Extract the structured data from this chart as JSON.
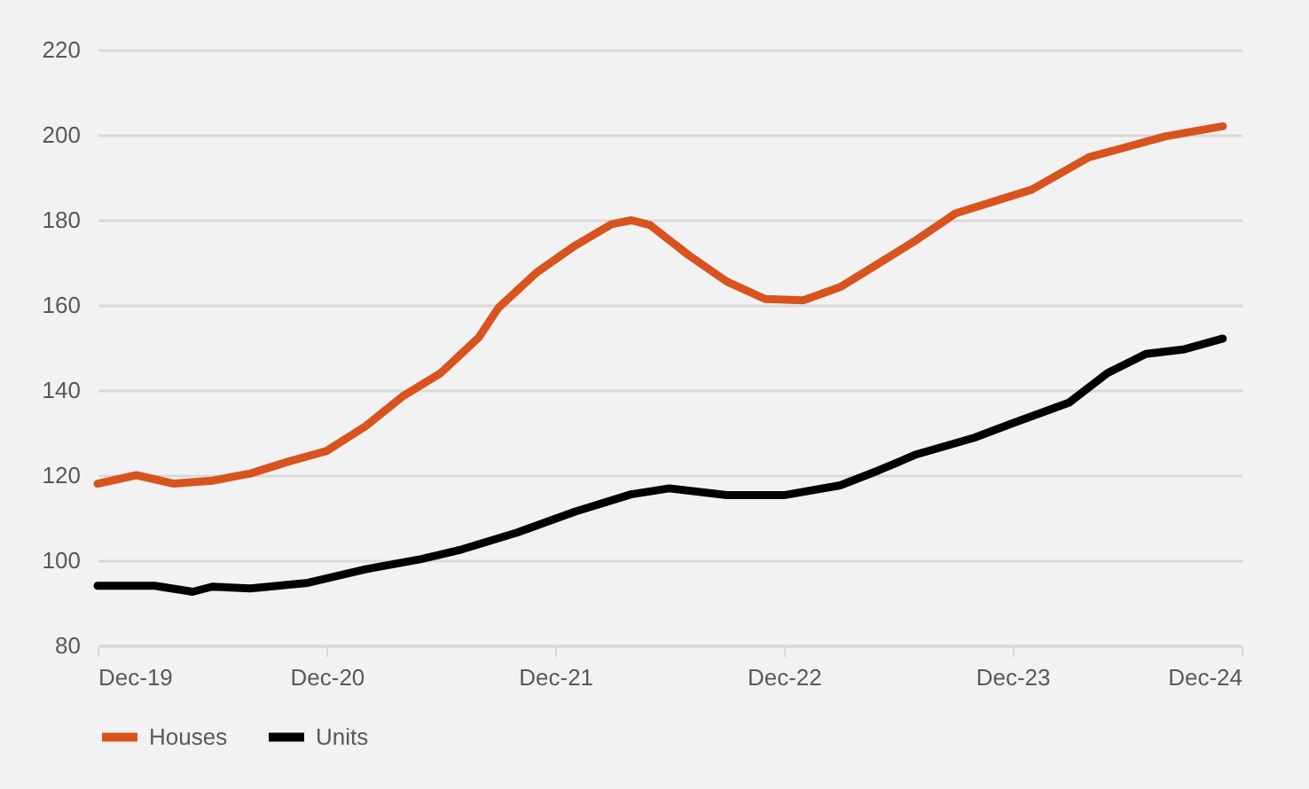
{
  "chart_data": {
    "type": "line",
    "ylim": [
      80,
      220
    ],
    "yticks": [
      80,
      100,
      120,
      140,
      160,
      180,
      200,
      220
    ],
    "xlim": [
      "2019-12",
      "2024-12"
    ],
    "xticks": [
      {
        "value": "2019-12",
        "label": "Dec-19"
      },
      {
        "value": "2020-12",
        "label": "Dec-20"
      },
      {
        "value": "2021-12",
        "label": "Dec-21"
      },
      {
        "value": "2022-12",
        "label": "Dec-22"
      },
      {
        "value": "2023-12",
        "label": "Dec-23"
      },
      {
        "value": "2024-12",
        "label": "Dec-24"
      }
    ],
    "grid": "y",
    "legend": "bottom",
    "line_style": "solid",
    "series": [
      {
        "name": "Houses",
        "color": "#d9531e",
        "x": [
          "2019-12",
          "2020-02",
          "2020-04",
          "2020-06",
          "2020-08",
          "2020-10",
          "2020-12",
          "2021-02",
          "2021-04",
          "2021-06",
          "2021-08",
          "2021-09",
          "2021-11",
          "2022-01",
          "2022-03",
          "2022-04",
          "2022-05",
          "2022-07",
          "2022-09",
          "2022-11",
          "2023-01",
          "2023-03",
          "2023-05",
          "2023-07",
          "2023-09",
          "2024-01",
          "2024-04",
          "2024-08",
          "2024-11"
        ],
        "values": [
          118,
          120,
          118,
          118.7,
          120.4,
          123.2,
          125.7,
          131.5,
          138.5,
          144,
          152.4,
          159.3,
          167.6,
          173.9,
          179,
          179.9,
          178.8,
          171.8,
          165.5,
          161.4,
          161.1,
          164.2,
          169.7,
          175.3,
          181.5,
          187.1,
          194.7,
          199.6,
          202
        ]
      },
      {
        "name": "Units",
        "color": "#000000",
        "x": [
          "2019-12",
          "2020-03",
          "2020-05",
          "2020-06",
          "2020-08",
          "2020-11",
          "2021-02",
          "2021-05",
          "2021-07",
          "2021-10",
          "2022-01",
          "2022-04",
          "2022-06",
          "2022-09",
          "2022-12",
          "2023-03",
          "2023-05",
          "2023-07",
          "2023-10",
          "2023-12",
          "2024-03",
          "2024-05",
          "2024-07",
          "2024-09",
          "2024-11"
        ],
        "values": [
          94,
          94,
          92.6,
          93.8,
          93.4,
          94.7,
          97.9,
          100.3,
          102.4,
          106.5,
          111.4,
          115.5,
          116.9,
          115.3,
          115.3,
          117.6,
          121.1,
          124.9,
          128.8,
          132.2,
          137.1,
          144,
          148.5,
          149.6,
          152.1
        ]
      }
    ]
  }
}
